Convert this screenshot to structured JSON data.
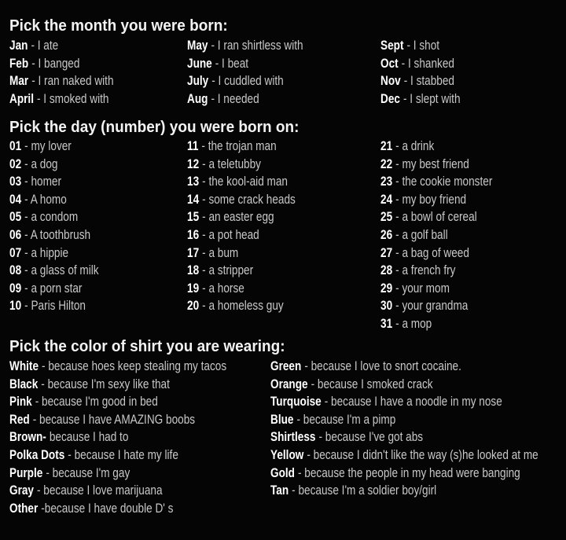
{
  "sections": [
    {
      "title": "Pick the month you were born:",
      "columns": [
        [
          {
            "key": "Jan",
            "text": "- I ate"
          },
          {
            "key": "Feb",
            "text": "- I banged"
          },
          {
            "key": "Mar",
            "text": "- I ran naked with"
          },
          {
            "key": "April",
            "text": "- I smoked with"
          }
        ],
        [
          {
            "key": "May",
            "text": "- I ran shirtless with"
          },
          {
            "key": "June",
            "text": "- I beat"
          },
          {
            "key": "July",
            "text": "- I cuddled with"
          },
          {
            "key": "Aug",
            "text": "- I needed"
          }
        ],
        [
          {
            "key": "Sept",
            "text": "- I shot"
          },
          {
            "key": "Oct",
            "text": "- I shanked"
          },
          {
            "key": "Nov",
            "text": "- I stabbed"
          },
          {
            "key": "Dec",
            "text": "- I slept with"
          }
        ]
      ]
    },
    {
      "title": "Pick the day (number) you were born on:",
      "columns": [
        [
          {
            "key": "01",
            "text": "- my lover"
          },
          {
            "key": "02",
            "text": "- a dog"
          },
          {
            "key": "03",
            "text": "- homer"
          },
          {
            "key": "04",
            "text": "- A homo"
          },
          {
            "key": "05",
            "text": "- a condom"
          },
          {
            "key": "06",
            "text": "- A toothbrush"
          },
          {
            "key": "07",
            "text": "- a hippie"
          },
          {
            "key": "08",
            "text": "- a glass of milk"
          },
          {
            "key": "09",
            "text": "- a porn star"
          },
          {
            "key": "10",
            "text": "- Paris Hilton"
          }
        ],
        [
          {
            "key": "11",
            "text": "- the trojan man"
          },
          {
            "key": "12",
            "text": "- a teletubby"
          },
          {
            "key": "13",
            "text": "- the kool-aid man"
          },
          {
            "key": "14",
            "text": "- some crack heads"
          },
          {
            "key": "15",
            "text": "- an easter egg"
          },
          {
            "key": "16",
            "text": "- a pot head"
          },
          {
            "key": "17",
            "text": "- a bum"
          },
          {
            "key": "18",
            "text": "- a stripper"
          },
          {
            "key": "19",
            "text": "- a horse"
          },
          {
            "key": "20",
            "text": "- a homeless guy"
          }
        ],
        [
          {
            "key": "21",
            "text": "- a drink"
          },
          {
            "key": "22",
            "text": "- my best friend"
          },
          {
            "key": "23",
            "text": "- the cookie monster"
          },
          {
            "key": "24",
            "text": "- my boy friend"
          },
          {
            "key": "25",
            "text": "- a bowl of cereal"
          },
          {
            "key": "26",
            "text": "- a golf ball"
          },
          {
            "key": "27",
            "text": "- a bag of weed"
          },
          {
            "key": "28",
            "text": "- a french fry"
          },
          {
            "key": "29",
            "text": "- your mom"
          },
          {
            "key": "30",
            "text": "- your grandma"
          },
          {
            "key": "31",
            "text": "- a mop"
          }
        ]
      ]
    },
    {
      "title": "Pick the color of shirt you are wearing:",
      "columns": [
        [
          {
            "key": "White",
            "text": "- because hoes keep stealing my tacos"
          },
          {
            "key": "Black",
            "text": "- because I'm sexy like that"
          },
          {
            "key": "Pink",
            "text": "- because I'm good in bed"
          },
          {
            "key": "Red",
            "text": "- because I have AMAZING boobs"
          },
          {
            "key": "Brown-",
            "text": "because I had to"
          },
          {
            "key": "Polka Dots",
            "text": "- because I hate my life"
          },
          {
            "key": "Purple",
            "text": "- because I'm gay"
          },
          {
            "key": "Gray",
            "text": "- because I love marijuana"
          },
          {
            "key": "Other",
            "text": "-because I have double D' s"
          }
        ],
        [
          {
            "key": "Green",
            "text": "- because I love to snort cocaine."
          },
          {
            "key": "Orange",
            "text": "- because I smoked crack"
          },
          {
            "key": "Turquoise",
            "text": "- because I have a noodle in my nose"
          },
          {
            "key": "Blue",
            "text": "- because I'm a pimp"
          },
          {
            "key": "Shirtless",
            "text": "- because I've got abs"
          },
          {
            "key": "Yellow",
            "text": "- because I didn't like the way (s)he looked at me"
          },
          {
            "key": "Gold",
            "text": "- because the people in my head were banging"
          },
          {
            "key": "Tan",
            "text": "- because I'm a soldier boy/girl"
          }
        ]
      ]
    }
  ]
}
